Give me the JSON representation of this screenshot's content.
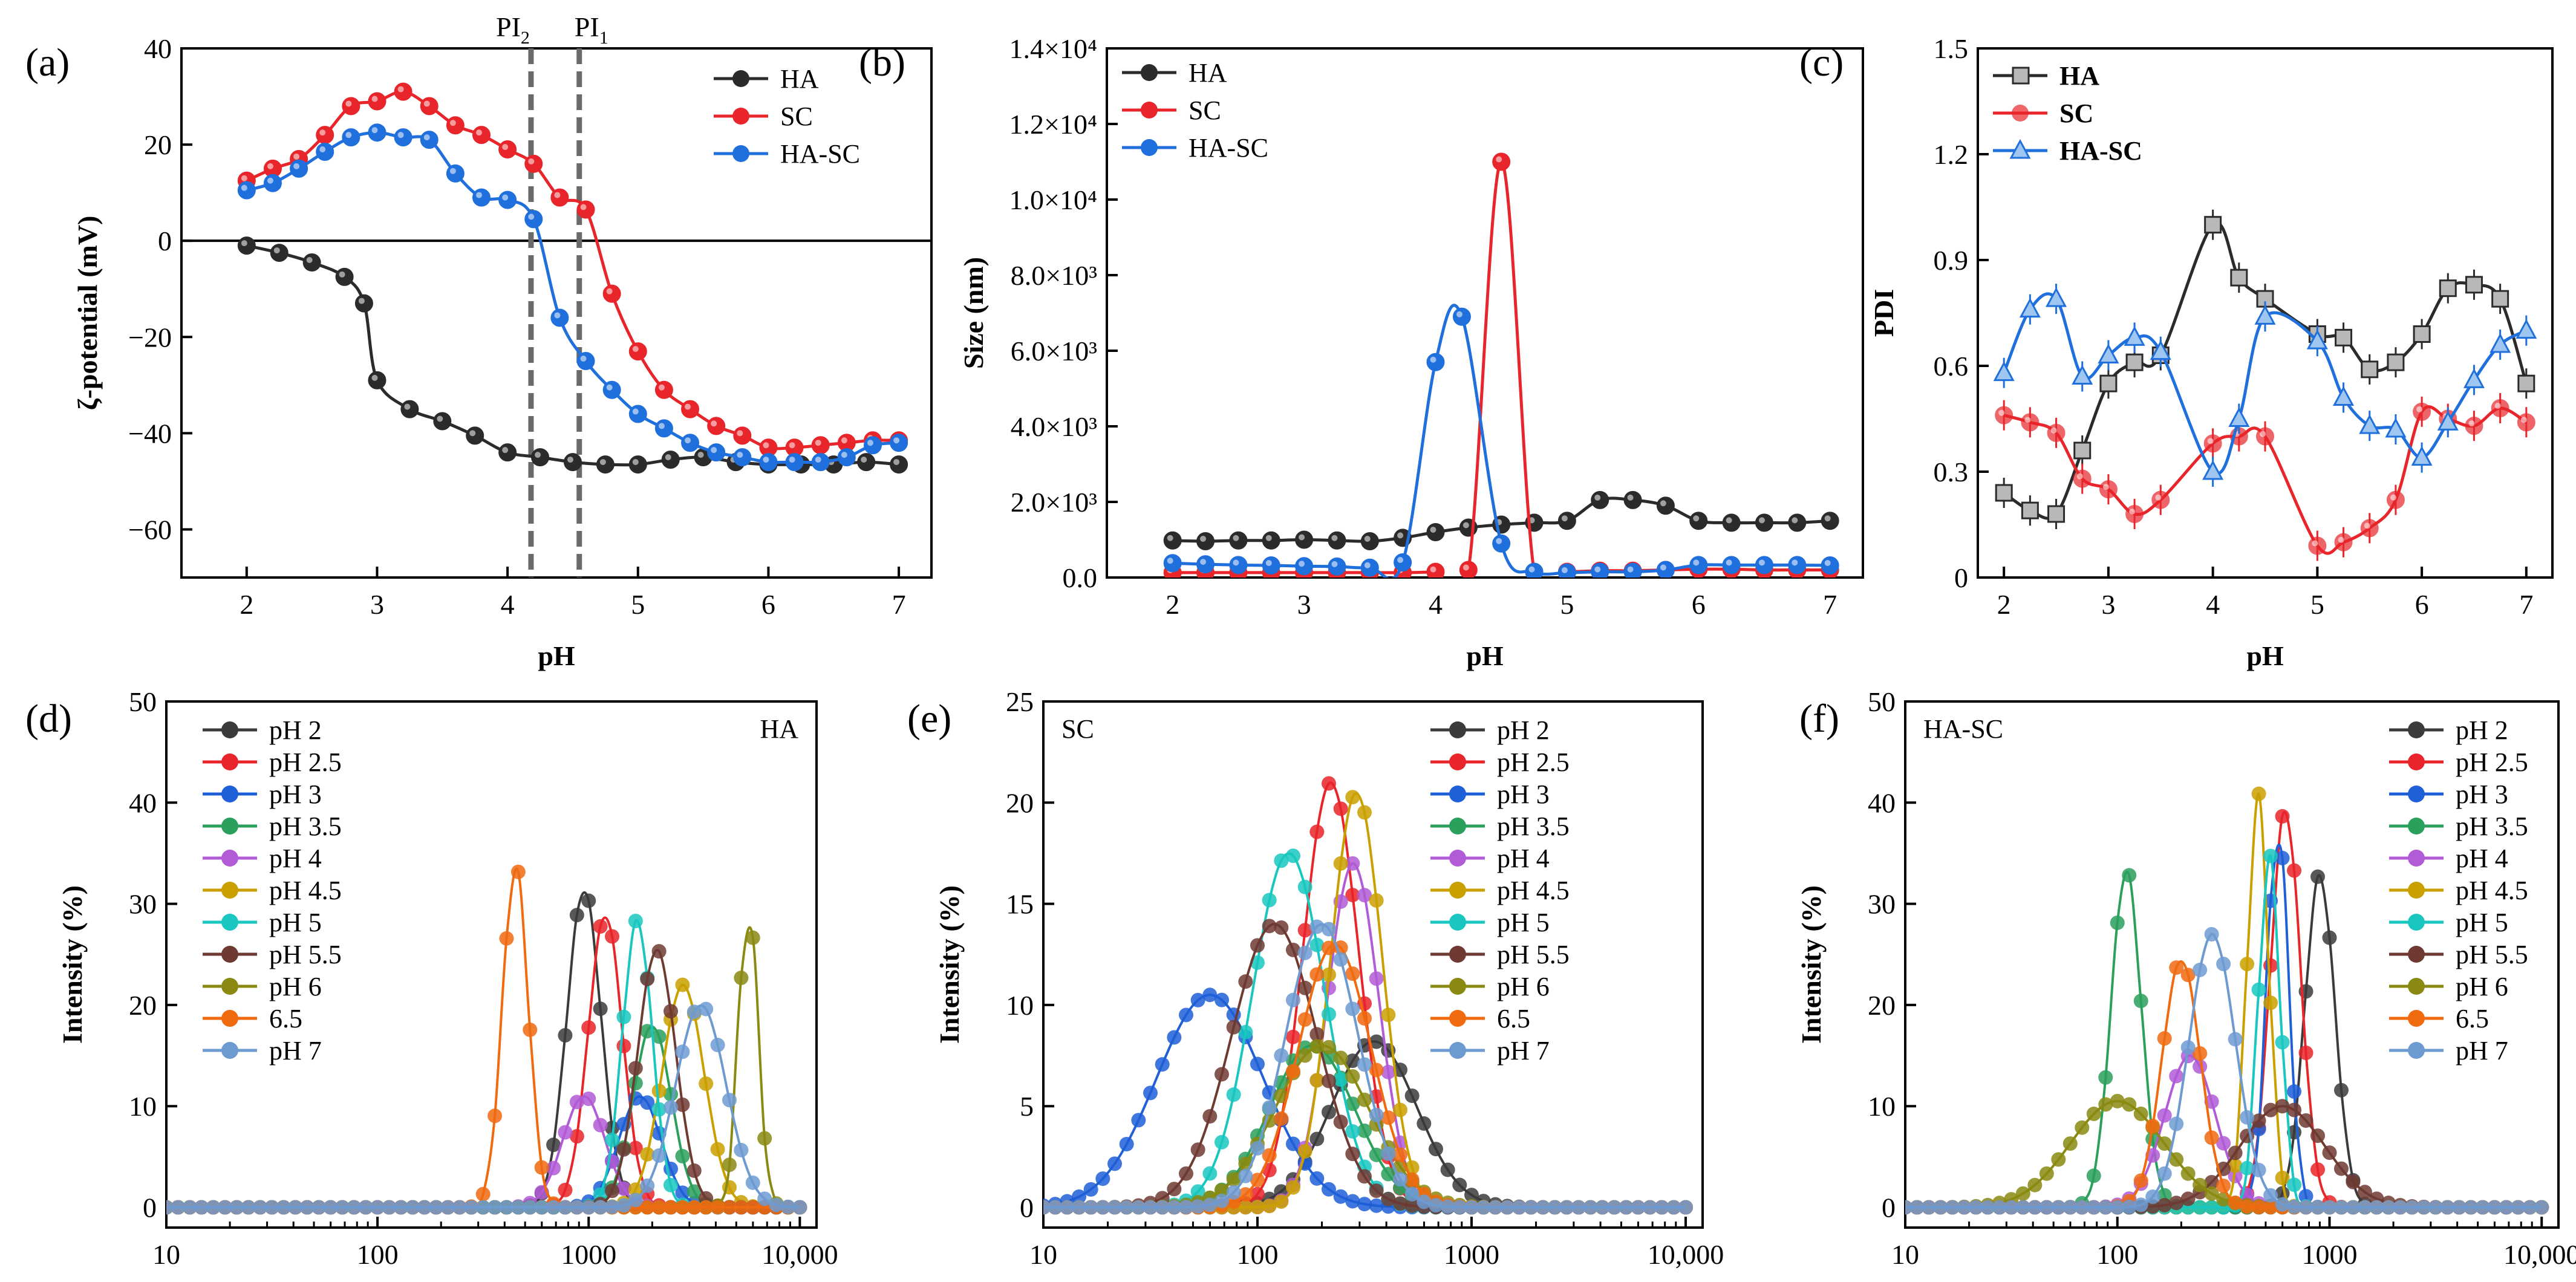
{
  "colors": {
    "HA": "#2b2b2b",
    "SC": "#e8252a",
    "HASC": "#1f6fdc",
    "pH2": "#3b3b3b",
    "pH2.5": "#e8252a",
    "pH3": "#1f5fd8",
    "pH3.5": "#2aa05c",
    "pH4": "#b25bd6",
    "pH4.5": "#c9a000",
    "pH5": "#19c7c0",
    "pH5.5": "#6e3a32",
    "pH6": "#8a8a12",
    "6.5": "#f06a10",
    "pH7": "#6d9bd1"
  },
  "chart_data": [
    {
      "panel": "(a)",
      "type": "line",
      "xlabel": "pH",
      "ylabel": "ζ-potential (mV)",
      "xlim": [
        1.5,
        7.25
      ],
      "ylim": [
        -70,
        40
      ],
      "xticks": [
        "2",
        "3",
        "4",
        "5",
        "6",
        "7"
      ],
      "yticks": [
        "40",
        "20",
        "0",
        "−20",
        "−40",
        "−60"
      ],
      "zero_line": 0,
      "vlines": [
        {
          "x": 4.18,
          "label": "PI",
          "sub": "2"
        },
        {
          "x": 4.55,
          "label": "PI",
          "sub": "1"
        }
      ],
      "series": [
        {
          "name": "HA",
          "x": [
            2,
            2.25,
            2.5,
            2.75,
            2.9,
            3,
            3.25,
            3.5,
            3.75,
            4,
            4.25,
            4.5,
            4.75,
            5,
            5.25,
            5.5,
            5.75,
            6,
            6.25,
            6.5,
            6.75,
            7
          ],
          "y": [
            -1,
            -2.5,
            -4.5,
            -7.5,
            -13,
            -29,
            -35,
            -37.5,
            -40.5,
            -44,
            -45,
            -46,
            -46.5,
            -46.5,
            -45.5,
            -45,
            -46,
            -46.5,
            -46.5,
            -46.5,
            -46,
            -46.5
          ]
        },
        {
          "name": "SC",
          "x": [
            2,
            2.2,
            2.4,
            2.6,
            2.8,
            3,
            3.2,
            3.4,
            3.6,
            3.8,
            4,
            4.2,
            4.4,
            4.6,
            4.8,
            5,
            5.2,
            5.4,
            5.6,
            5.8,
            6,
            6.2,
            6.4,
            6.6,
            6.8,
            7
          ],
          "y": [
            12.5,
            15,
            17,
            22,
            28,
            29,
            31,
            28,
            24,
            22,
            19,
            16,
            9,
            6.5,
            -11,
            -23,
            -31,
            -35,
            -38.5,
            -40.5,
            -43,
            -43,
            -42.5,
            -42,
            -41.5,
            -41.5
          ]
        },
        {
          "name": "HA-SC",
          "x": [
            2,
            2.2,
            2.4,
            2.6,
            2.8,
            3,
            3.2,
            3.4,
            3.6,
            3.8,
            4,
            4.2,
            4.4,
            4.6,
            4.8,
            5,
            5.2,
            5.4,
            5.6,
            5.8,
            6,
            6.2,
            6.4,
            6.6,
            6.8,
            7
          ],
          "y": [
            10.5,
            12,
            15,
            18.5,
            21.5,
            22.5,
            21.5,
            21,
            14,
            9,
            8.5,
            4.5,
            -16,
            -25,
            -31,
            -36,
            -39,
            -42,
            -44,
            -45,
            -46,
            -46,
            -46,
            -45,
            -42.5,
            -42
          ]
        }
      ]
    },
    {
      "panel": "(b)",
      "type": "line",
      "xlabel": "pH",
      "ylabel": "Size (nm)",
      "xlim": [
        1.5,
        7.25
      ],
      "ylim": [
        0,
        14000
      ],
      "xticks": [
        "2",
        "3",
        "4",
        "5",
        "6",
        "7"
      ],
      "yticks": [
        "0.0",
        "2.0×10³",
        "4.0×10³",
        "6.0×10³",
        "8.0×10³",
        "1.0×10⁴",
        "1.2×10⁴",
        "1.4×10⁴"
      ],
      "series": [
        {
          "name": "HA",
          "x": [
            2,
            2.25,
            2.5,
            2.75,
            3,
            3.25,
            3.5,
            3.75,
            4,
            4.25,
            4.5,
            4.75,
            5,
            5.25,
            5.5,
            5.75,
            6,
            6.25,
            6.5,
            6.75,
            7
          ],
          "y": [
            980,
            960,
            980,
            980,
            1000,
            980,
            960,
            1050,
            1200,
            1320,
            1400,
            1450,
            1500,
            2050,
            2050,
            1900,
            1500,
            1450,
            1450,
            1450,
            1500
          ]
        },
        {
          "name": "SC",
          "x": [
            2,
            2.25,
            2.5,
            2.75,
            3,
            3.25,
            3.5,
            3.75,
            4,
            4.25,
            4.5,
            4.75,
            5,
            5.25,
            5.5,
            5.75,
            6,
            6.25,
            6.5,
            6.75,
            7
          ],
          "y": [
            130,
            130,
            130,
            130,
            130,
            130,
            130,
            130,
            150,
            200,
            11000,
            150,
            150,
            180,
            180,
            200,
            220,
            220,
            200,
            200,
            200
          ]
        },
        {
          "name": "HA-SC",
          "x": [
            2,
            2.25,
            2.5,
            2.75,
            3,
            3.25,
            3.5,
            3.75,
            4,
            4.2,
            4.5,
            4.75,
            5,
            5.25,
            5.5,
            5.75,
            6,
            6.25,
            6.5,
            6.75,
            7
          ],
          "y": [
            380,
            350,
            330,
            320,
            300,
            290,
            260,
            400,
            5700,
            6900,
            900,
            150,
            130,
            150,
            150,
            200,
            330,
            330,
            330,
            330,
            320
          ]
        }
      ]
    },
    {
      "panel": "(c)",
      "type": "line",
      "xlabel": "pH",
      "ylabel": "PDI",
      "xlim": [
        1.75,
        7.25
      ],
      "ylim": [
        0,
        1.5
      ],
      "xticks": [
        "2",
        "3",
        "4",
        "5",
        "6",
        "7"
      ],
      "yticks": [
        "0",
        "0.3",
        "0.6",
        "0.9",
        "1.2",
        "1.5"
      ],
      "series": [
        {
          "name": "HA",
          "x": [
            2,
            2.25,
            2.5,
            2.75,
            3,
            3.25,
            3.5,
            4,
            4.25,
            4.5,
            5,
            5.25,
            5.5,
            5.75,
            6,
            6.25,
            6.5,
            6.75,
            7
          ],
          "y": [
            0.24,
            0.19,
            0.18,
            0.36,
            0.55,
            0.61,
            0.63,
            1.0,
            0.85,
            0.79,
            0.69,
            0.68,
            0.59,
            0.61,
            0.69,
            0.82,
            0.83,
            0.79,
            0.55
          ]
        },
        {
          "name": "SC",
          "x": [
            2,
            2.25,
            2.5,
            2.75,
            3,
            3.25,
            3.5,
            4,
            4.25,
            4.5,
            5,
            5.25,
            5.5,
            5.75,
            6,
            6.25,
            6.5,
            6.75,
            7
          ],
          "y": [
            0.46,
            0.44,
            0.41,
            0.28,
            0.25,
            0.18,
            0.22,
            0.38,
            0.4,
            0.4,
            0.09,
            0.1,
            0.14,
            0.22,
            0.47,
            0.45,
            0.43,
            0.48,
            0.44
          ]
        },
        {
          "name": "HA-SC",
          "x": [
            2,
            2.25,
            2.5,
            2.75,
            3,
            3.25,
            3.5,
            4,
            4.25,
            4.5,
            5,
            5.25,
            5.5,
            5.75,
            6,
            6.25,
            6.5,
            6.75,
            7
          ],
          "y": [
            0.58,
            0.76,
            0.79,
            0.57,
            0.63,
            0.68,
            0.64,
            0.3,
            0.45,
            0.74,
            0.67,
            0.51,
            0.43,
            0.42,
            0.34,
            0.44,
            0.56,
            0.66,
            0.7
          ]
        }
      ]
    },
    {
      "panel": "(d)",
      "type": "line",
      "log_x": true,
      "sample": "HA",
      "xlabel": "",
      "ylabel": "Intensity (%)",
      "xlim": [
        10,
        12000
      ],
      "ylim": [
        -2,
        50
      ],
      "xticks": [
        "10",
        "100",
        "1000",
        "10,000"
      ],
      "yticks": [
        "0",
        "10",
        "20",
        "30",
        "40",
        "50"
      ],
      "series": [
        {
          "name": "pH 2",
          "peak": 950,
          "height": 31.5,
          "width": 0.08
        },
        {
          "name": "pH 2.5",
          "peak": 1200,
          "height": 29,
          "width": 0.08
        },
        {
          "name": "pH 3",
          "peak": 1750,
          "height": 11,
          "width": 0.1
        },
        {
          "name": "pH 3.5",
          "peak": 2000,
          "height": 18,
          "width": 0.09
        },
        {
          "name": "pH 4",
          "peak": 950,
          "height": 11,
          "width": 0.1
        },
        {
          "name": "pH 4.5",
          "peak": 2800,
          "height": 22,
          "width": 0.1
        },
        {
          "name": "pH 5",
          "peak": 1700,
          "height": 28.5,
          "width": 0.07
        },
        {
          "name": "pH 5.5",
          "peak": 2100,
          "height": 25.5,
          "width": 0.09
        },
        {
          "name": "pH 6",
          "peak": 5700,
          "height": 30,
          "width": 0.045
        },
        {
          "name": "6.5",
          "peak": 450,
          "height": 34,
          "width": 0.06
        },
        {
          "name": "pH 7",
          "peak": 3400,
          "height": 20,
          "width": 0.12
        }
      ]
    },
    {
      "panel": "(e)",
      "type": "line",
      "log_x": true,
      "sample": "SC",
      "xlabel": "",
      "ylabel": "Intensity (%)",
      "xlim": [
        10,
        12000
      ],
      "ylim": [
        -1,
        25
      ],
      "xticks": [
        "10",
        "100",
        "1000",
        "10,000"
      ],
      "yticks": [
        "0",
        "5",
        "10",
        "15",
        "20",
        "25"
      ],
      "series": [
        {
          "name": "pH 2",
          "peak": 350,
          "height": 8.2,
          "width": 0.2
        },
        {
          "name": "pH 2.5",
          "peak": 220,
          "height": 21,
          "width": 0.13
        },
        {
          "name": "pH 3",
          "peak": 60,
          "height": 10.5,
          "width": 0.25
        },
        {
          "name": "pH 3.5",
          "peak": 180,
          "height": 8,
          "width": 0.2
        },
        {
          "name": "pH 4",
          "peak": 280,
          "height": 17,
          "width": 0.12
        },
        {
          "name": "pH 4.5",
          "peak": 290,
          "height": 20.5,
          "width": 0.12
        },
        {
          "name": "pH 5",
          "peak": 140,
          "height": 17.5,
          "width": 0.17
        },
        {
          "name": "pH 5.5",
          "peak": 120,
          "height": 14,
          "width": 0.2
        },
        {
          "name": "pH 6",
          "peak": 200,
          "height": 8,
          "width": 0.22
        },
        {
          "name": "6.5",
          "peak": 230,
          "height": 13,
          "width": 0.17
        },
        {
          "name": "pH 7",
          "peak": 200,
          "height": 14,
          "width": 0.17
        }
      ]
    },
    {
      "panel": "(f)",
      "type": "line",
      "log_x": true,
      "sample": "HA-SC",
      "xlabel": "",
      "ylabel": "Intensity (%)",
      "xlim": [
        10,
        12000
      ],
      "ylim": [
        -2,
        50
      ],
      "xticks": [
        "10",
        "100",
        "1000",
        "10,000"
      ],
      "yticks": [
        "0",
        "10",
        "20",
        "30",
        "40",
        "50"
      ],
      "series": [
        {
          "name": "pH 2",
          "peak": 900,
          "height": 33,
          "width": 0.07
        },
        {
          "name": "pH 2.5",
          "peak": 620,
          "height": 39.5,
          "width": 0.07
        },
        {
          "name": "pH 3",
          "peak": 570,
          "height": 38,
          "width": 0.05
        },
        {
          "name": "pH 3.5",
          "peak": 110,
          "height": 33.5,
          "width": 0.07
        },
        {
          "name": "pH 4",
          "peak": 220,
          "height": 15,
          "width": 0.12
        },
        {
          "name": "pH 4.5",
          "peak": 460,
          "height": 41,
          "width": 0.05
        },
        {
          "name": "pH 5",
          "peak": 520,
          "height": 35,
          "width": 0.05
        },
        {
          "name": "pH 5.5",
          "peak": 600,
          "height": 10,
          "width": 0.2
        },
        {
          "name": "pH 6",
          "peak": 100,
          "height": 10.5,
          "width": 0.22
        },
        {
          "name": "6.5",
          "peak": 200,
          "height": 24.5,
          "width": 0.09
        },
        {
          "name": "pH 7",
          "peak": 280,
          "height": 27,
          "width": 0.11
        }
      ]
    }
  ]
}
